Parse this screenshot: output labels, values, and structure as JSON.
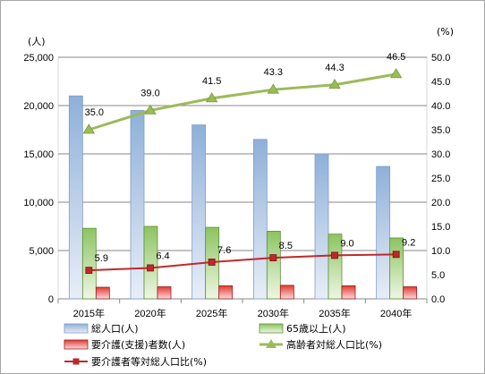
{
  "chart_data": {
    "type": "bar",
    "categories": [
      "2015年",
      "2020年",
      "2025年",
      "2030年",
      "2035年",
      "2040年"
    ],
    "series": [
      {
        "name": "総人口(人)",
        "kind": "bar",
        "axis": "left",
        "values": [
          21000,
          19500,
          18000,
          16500,
          15000,
          13700
        ],
        "color": "#95b3d7"
      },
      {
        "name": "65歳以上(人)",
        "kind": "bar",
        "axis": "left",
        "values": [
          7300,
          7500,
          7400,
          7000,
          6700,
          6300
        ],
        "color": "#92d050"
      },
      {
        "name": "要介護(支援)者数(人)",
        "kind": "bar",
        "axis": "left",
        "values": [
          1200,
          1250,
          1350,
          1400,
          1350,
          1250
        ],
        "color": "#e0392d"
      },
      {
        "name": "高齢者対総人口比(%)",
        "kind": "line",
        "axis": "right",
        "values": [
          35.0,
          39.0,
          41.5,
          43.3,
          44.3,
          46.5
        ],
        "labels": [
          "35.0",
          "39.0",
          "41.5",
          "43.3",
          "44.3",
          "46.5"
        ],
        "color": "#9bbb59"
      },
      {
        "name": "要介護者等対総人口比(%)",
        "kind": "line",
        "axis": "right",
        "values": [
          5.9,
          6.4,
          7.6,
          8.5,
          9.0,
          9.2
        ],
        "labels": [
          "5.9",
          "6.4",
          "7.6",
          "8.5",
          "9.0",
          "9.2"
        ],
        "color": "#c0282b"
      }
    ],
    "y_left": {
      "unit": "(人)",
      "range": [
        0,
        25000
      ],
      "ticks": [
        "0",
        "5,000",
        "10,000",
        "15,000",
        "20,000",
        "25,000"
      ]
    },
    "y_right": {
      "unit": "(%)",
      "range": [
        0,
        50
      ],
      "ticks": [
        "0.0",
        "5.0",
        "10.0",
        "15.0",
        "20.0",
        "25.0",
        "30.0",
        "35.0",
        "40.0",
        "45.0",
        "50.0"
      ]
    },
    "legend_position": "bottom",
    "grid": "horizontal"
  }
}
